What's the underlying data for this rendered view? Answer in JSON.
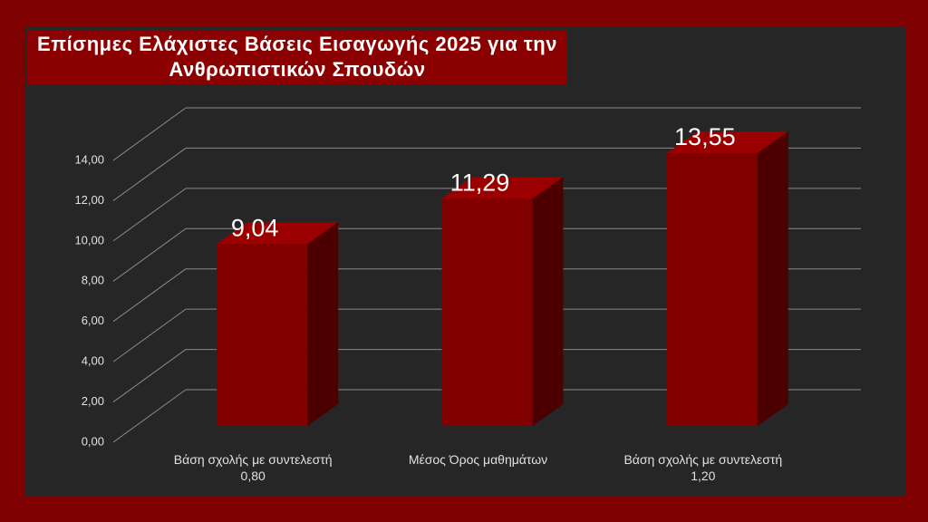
{
  "chart_data": {
    "type": "bar3d",
    "title": "Επίσημες Ελάχιστες Βάσεις Εισαγωγής 2025 για την Ανθρωπιστικών Σπουδών",
    "categories": [
      "Βάση σχολής με συντελεστή 0,80",
      "Μέσος Όρος μαθημάτων",
      "Βάση σχολής με συντελεστή 1,20"
    ],
    "values": [
      9.04,
      11.29,
      13.55
    ],
    "value_labels": [
      "9,04",
      "11,29",
      "13,55"
    ],
    "color": "#800000",
    "ylim": [
      0,
      14
    ],
    "yticks": [
      {
        "value": 0,
        "label": "0,00"
      },
      {
        "value": 2,
        "label": "2,00"
      },
      {
        "value": 4,
        "label": "4,00"
      },
      {
        "value": 6,
        "label": "6,00"
      },
      {
        "value": 8,
        "label": "8,00"
      },
      {
        "value": 10,
        "label": "10,00"
      },
      {
        "value": 12,
        "label": "12,00"
      },
      {
        "value": 14,
        "label": "14,00"
      }
    ],
    "grid": true
  }
}
